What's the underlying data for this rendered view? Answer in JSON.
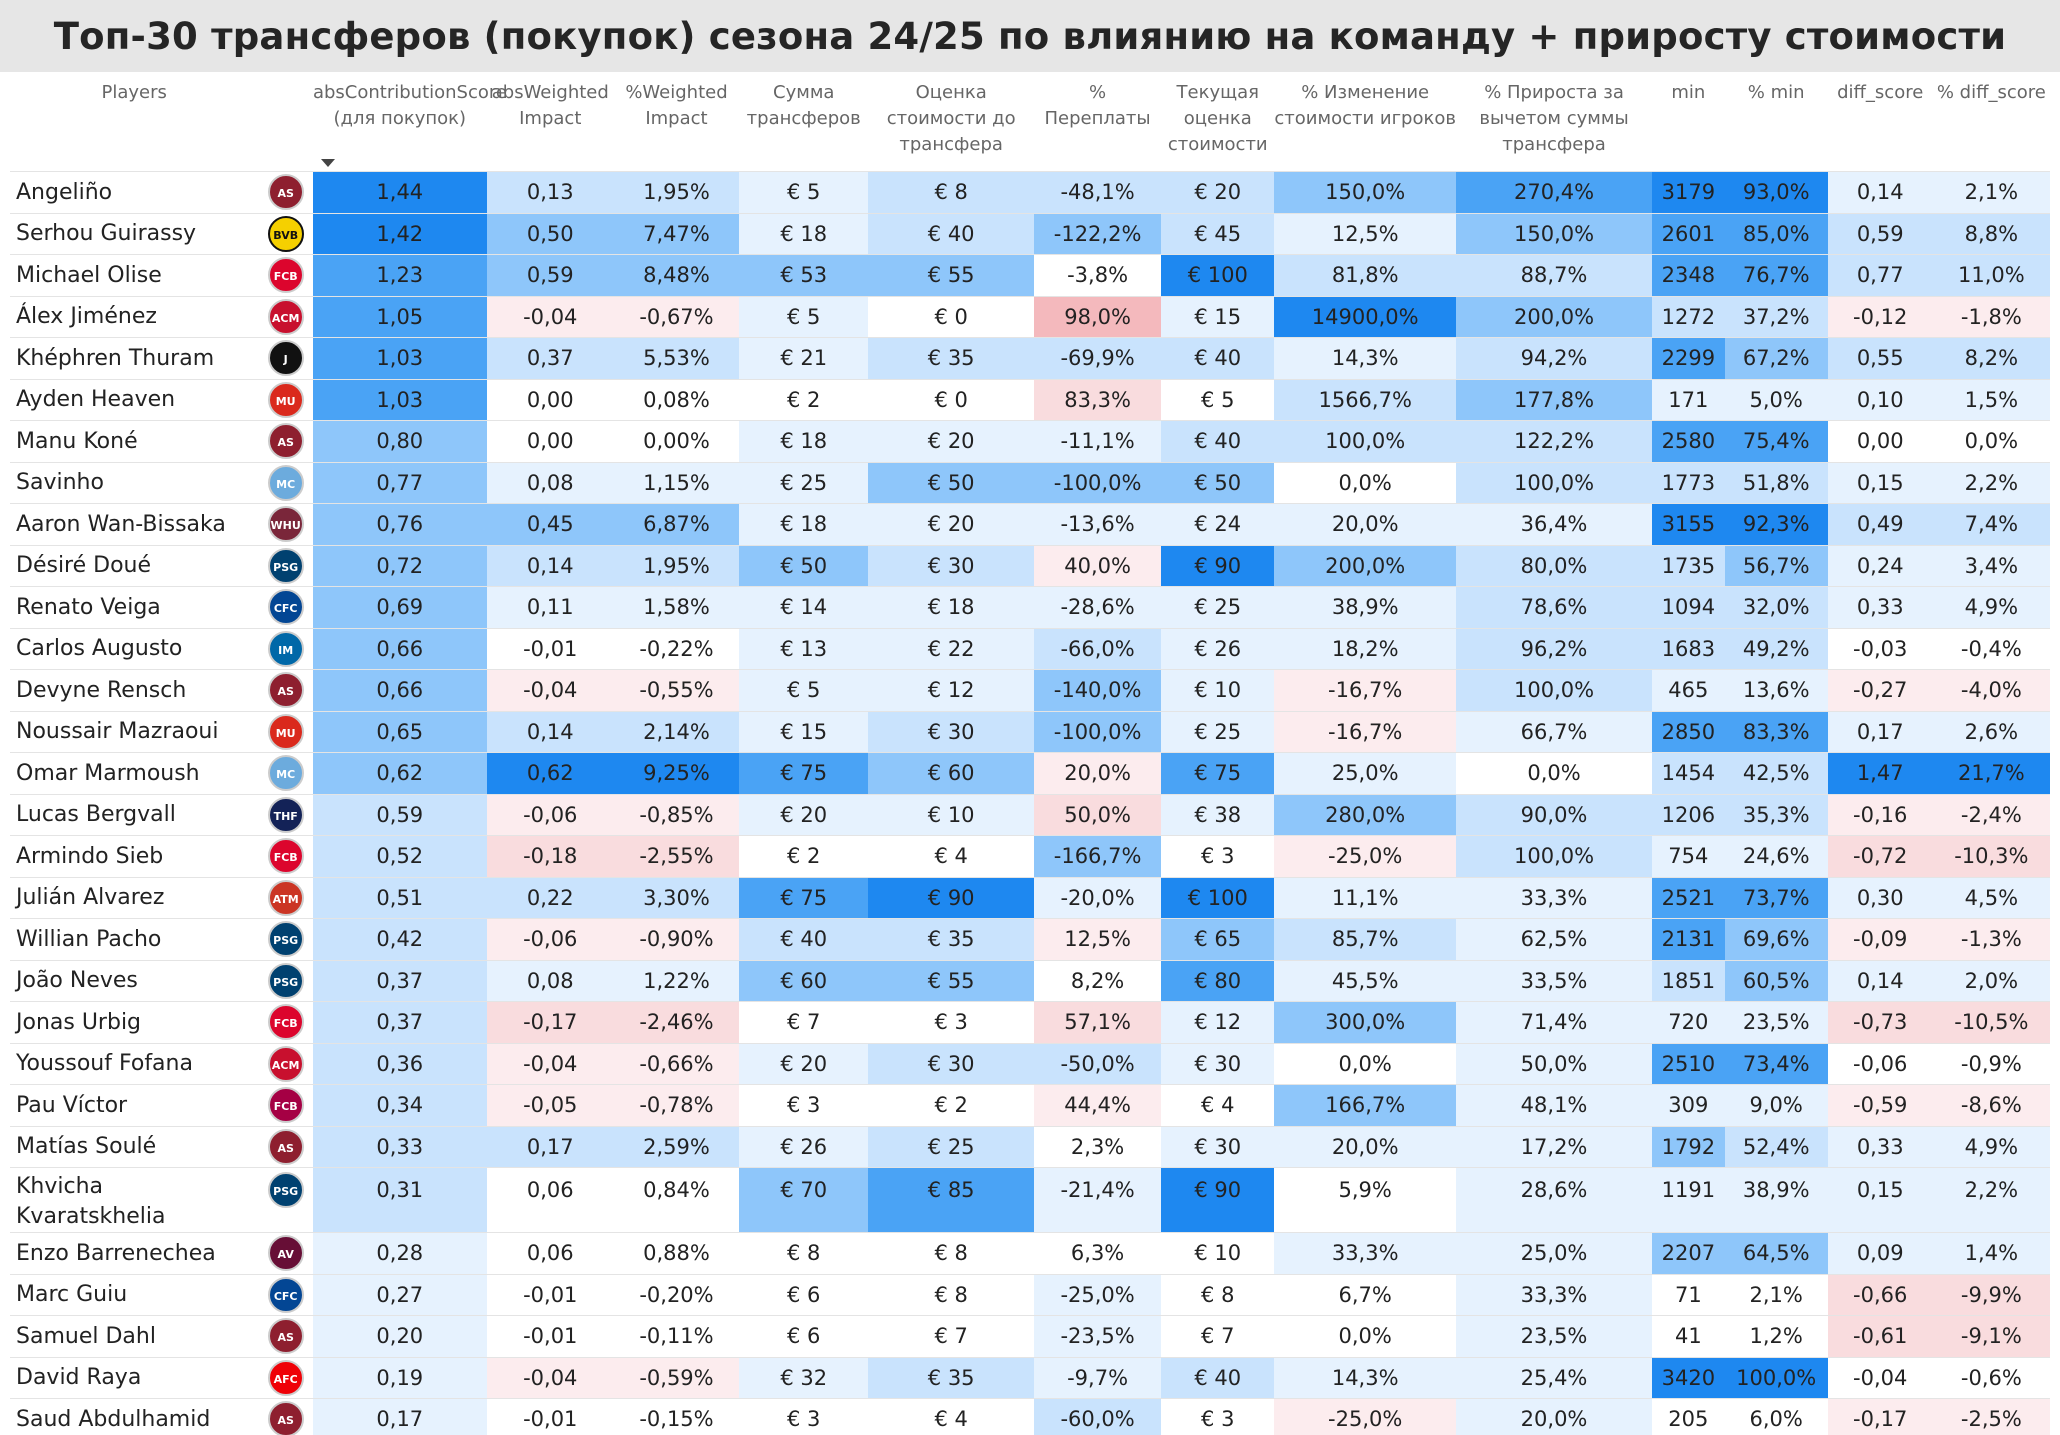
{
  "title": "Топ-30 трансферов (покупок) сезона 24/25 по влиянию на команду + приросту стоимости",
  "columns": [
    "Players",
    "",
    "absContributionScore (для покупок)",
    "absWeighted Impact",
    "%Weighted Impact",
    "Сумма трансферов",
    "Оценка стоимости до трансфера",
    "% Переплаты",
    "Текущая оценка стоимости",
    "% Изменение стоимости игроков",
    "% Прироста за вычетом суммы трансфера",
    "min",
    "% min",
    "diff_score",
    "% diff_score"
  ],
  "colors": {
    "blue_strong": "#1e88f0",
    "blue_mid": "#4aa3f5",
    "blue_light": "#8ec6fa",
    "blue_pale": "#c9e3fd",
    "blue_faint": "#e6f2fe",
    "red_light": "#f4b9bd",
    "red_pale": "#f9dcde",
    "red_faint": "#fcecee",
    "white": "#ffffff"
  },
  "rows": [
    {
      "player": "Angeliño",
      "club": "roma-icon",
      "club_color": "#8e1f2f",
      "cells": [
        "1,44",
        "0,13",
        "1,95%",
        "€ 5",
        "€ 8",
        "-48,1%",
        "€ 20",
        "150,0%",
        "270,4%",
        "3179",
        "93,0%",
        "0,14",
        "2,1%"
      ],
      "shade": [
        "blue_strong",
        "blue_pale",
        "blue_pale",
        "blue_faint",
        "blue_pale",
        "blue_pale",
        "blue_pale",
        "blue_light",
        "blue_mid",
        "blue_strong",
        "blue_strong",
        "blue_faint",
        "blue_faint"
      ]
    },
    {
      "player": "Serhou Guirassy",
      "club": "bvb-icon",
      "club_color": "#f5d000",
      "cells": [
        "1,42",
        "0,50",
        "7,47%",
        "€ 18",
        "€ 40",
        "-122,2%",
        "€ 45",
        "12,5%",
        "150,0%",
        "2601",
        "85,0%",
        "0,59",
        "8,8%"
      ],
      "shade": [
        "blue_strong",
        "blue_light",
        "blue_light",
        "blue_faint",
        "blue_pale",
        "blue_light",
        "blue_pale",
        "blue_faint",
        "blue_light",
        "blue_mid",
        "blue_mid",
        "blue_pale",
        "blue_pale"
      ]
    },
    {
      "player": "Michael Olise",
      "club": "bayern-icon",
      "club_color": "#dc052d",
      "cells": [
        "1,23",
        "0,59",
        "8,48%",
        "€ 53",
        "€ 55",
        "-3,8%",
        "€ 100",
        "81,8%",
        "88,7%",
        "2348",
        "76,7%",
        "0,77",
        "11,0%"
      ],
      "shade": [
        "blue_mid",
        "blue_light",
        "blue_light",
        "blue_light",
        "blue_light",
        "white",
        "blue_strong",
        "blue_pale",
        "blue_pale",
        "blue_mid",
        "blue_mid",
        "blue_pale",
        "blue_pale"
      ]
    },
    {
      "player": "Álex Jiménez",
      "club": "milan-icon",
      "club_color": "#c8102e",
      "cells": [
        "1,05",
        "-0,04",
        "-0,67%",
        "€ 5",
        "€ 0",
        "98,0%",
        "€ 15",
        "14900,0%",
        "200,0%",
        "1272",
        "37,2%",
        "-0,12",
        "-1,8%"
      ],
      "shade": [
        "blue_mid",
        "red_faint",
        "red_faint",
        "blue_faint",
        "white",
        "red_light",
        "blue_faint",
        "blue_strong",
        "blue_light",
        "blue_pale",
        "blue_pale",
        "red_faint",
        "red_faint"
      ]
    },
    {
      "player": "Khéphren Thuram",
      "club": "juventus-icon",
      "club_color": "#111111",
      "cells": [
        "1,03",
        "0,37",
        "5,53%",
        "€ 21",
        "€ 35",
        "-69,9%",
        "€ 40",
        "14,3%",
        "94,2%",
        "2299",
        "67,2%",
        "0,55",
        "8,2%"
      ],
      "shade": [
        "blue_mid",
        "blue_pale",
        "blue_pale",
        "blue_faint",
        "blue_pale",
        "blue_pale",
        "blue_pale",
        "blue_faint",
        "blue_pale",
        "blue_mid",
        "blue_light",
        "blue_pale",
        "blue_pale"
      ]
    },
    {
      "player": "Ayden Heaven",
      "club": "manutd-icon",
      "club_color": "#da291c",
      "cells": [
        "1,03",
        "0,00",
        "0,08%",
        "€ 2",
        "€ 0",
        "83,3%",
        "€ 5",
        "1566,7%",
        "177,8%",
        "171",
        "5,0%",
        "0,10",
        "1,5%"
      ],
      "shade": [
        "blue_mid",
        "white",
        "white",
        "white",
        "white",
        "red_pale",
        "white",
        "blue_pale",
        "blue_light",
        "blue_faint",
        "blue_faint",
        "blue_faint",
        "blue_faint"
      ]
    },
    {
      "player": "Manu Koné",
      "club": "roma-icon",
      "club_color": "#8e1f2f",
      "cells": [
        "0,80",
        "0,00",
        "0,00%",
        "€ 18",
        "€ 20",
        "-11,1%",
        "€ 40",
        "100,0%",
        "122,2%",
        "2580",
        "75,4%",
        "0,00",
        "0,0%"
      ],
      "shade": [
        "blue_light",
        "white",
        "white",
        "blue_faint",
        "blue_faint",
        "blue_faint",
        "blue_pale",
        "blue_pale",
        "blue_pale",
        "blue_mid",
        "blue_mid",
        "white",
        "white"
      ]
    },
    {
      "player": "Savinho",
      "club": "mancity-icon",
      "club_color": "#6cabdd",
      "cells": [
        "0,77",
        "0,08",
        "1,15%",
        "€ 25",
        "€ 50",
        "-100,0%",
        "€ 50",
        "0,0%",
        "100,0%",
        "1773",
        "51,8%",
        "0,15",
        "2,2%"
      ],
      "shade": [
        "blue_light",
        "blue_faint",
        "blue_faint",
        "blue_faint",
        "blue_light",
        "blue_light",
        "blue_light",
        "white",
        "blue_pale",
        "blue_pale",
        "blue_pale",
        "blue_faint",
        "blue_faint"
      ]
    },
    {
      "player": "Aaron Wan-Bissaka",
      "club": "westham-icon",
      "club_color": "#7a263a",
      "cells": [
        "0,76",
        "0,45",
        "6,87%",
        "€ 18",
        "€ 20",
        "-13,6%",
        "€ 24",
        "20,0%",
        "36,4%",
        "3155",
        "92,3%",
        "0,49",
        "7,4%"
      ],
      "shade": [
        "blue_light",
        "blue_light",
        "blue_light",
        "blue_faint",
        "blue_faint",
        "blue_faint",
        "blue_faint",
        "blue_faint",
        "blue_faint",
        "blue_strong",
        "blue_strong",
        "blue_pale",
        "blue_pale"
      ]
    },
    {
      "player": "Désiré Doué",
      "club": "psg-icon",
      "club_color": "#004170",
      "cells": [
        "0,72",
        "0,14",
        "1,95%",
        "€ 50",
        "€ 30",
        "40,0%",
        "€ 90",
        "200,0%",
        "80,0%",
        "1735",
        "56,7%",
        "0,24",
        "3,4%"
      ],
      "shade": [
        "blue_light",
        "blue_pale",
        "blue_pale",
        "blue_light",
        "blue_pale",
        "red_faint",
        "blue_strong",
        "blue_light",
        "blue_pale",
        "blue_pale",
        "blue_light",
        "blue_faint",
        "blue_faint"
      ]
    },
    {
      "player": "Renato Veiga",
      "club": "chelsea-icon",
      "club_color": "#034694",
      "cells": [
        "0,69",
        "0,11",
        "1,58%",
        "€ 14",
        "€ 18",
        "-28,6%",
        "€ 25",
        "38,9%",
        "78,6%",
        "1094",
        "32,0%",
        "0,33",
        "4,9%"
      ],
      "shade": [
        "blue_light",
        "blue_faint",
        "blue_faint",
        "blue_faint",
        "blue_faint",
        "blue_faint",
        "blue_faint",
        "blue_faint",
        "blue_pale",
        "blue_pale",
        "blue_pale",
        "blue_faint",
        "blue_faint"
      ]
    },
    {
      "player": "Carlos Augusto",
      "club": "inter-icon",
      "club_color": "#0068a8",
      "cells": [
        "0,66",
        "-0,01",
        "-0,22%",
        "€ 13",
        "€ 22",
        "-66,0%",
        "€ 26",
        "18,2%",
        "96,2%",
        "1683",
        "49,2%",
        "-0,03",
        "-0,4%"
      ],
      "shade": [
        "blue_light",
        "white",
        "white",
        "blue_faint",
        "blue_faint",
        "blue_pale",
        "blue_faint",
        "blue_faint",
        "blue_pale",
        "blue_pale",
        "blue_pale",
        "white",
        "white"
      ]
    },
    {
      "player": "Devyne Rensch",
      "club": "roma-icon",
      "club_color": "#8e1f2f",
      "cells": [
        "0,66",
        "-0,04",
        "-0,55%",
        "€ 5",
        "€ 12",
        "-140,0%",
        "€ 10",
        "-16,7%",
        "100,0%",
        "465",
        "13,6%",
        "-0,27",
        "-4,0%"
      ],
      "shade": [
        "blue_light",
        "red_faint",
        "red_faint",
        "blue_faint",
        "blue_faint",
        "blue_light",
        "blue_faint",
        "red_faint",
        "blue_pale",
        "blue_faint",
        "blue_faint",
        "red_faint",
        "red_faint"
      ]
    },
    {
      "player": "Noussair Mazraoui",
      "club": "manutd-icon",
      "club_color": "#da291c",
      "cells": [
        "0,65",
        "0,14",
        "2,14%",
        "€ 15",
        "€ 30",
        "-100,0%",
        "€ 25",
        "-16,7%",
        "66,7%",
        "2850",
        "83,3%",
        "0,17",
        "2,6%"
      ],
      "shade": [
        "blue_light",
        "blue_pale",
        "blue_pale",
        "blue_faint",
        "blue_pale",
        "blue_light",
        "blue_faint",
        "red_faint",
        "blue_faint",
        "blue_mid",
        "blue_mid",
        "blue_faint",
        "blue_faint"
      ]
    },
    {
      "player": "Omar Marmoush",
      "club": "mancity-icon",
      "club_color": "#6cabdd",
      "cells": [
        "0,62",
        "0,62",
        "9,25%",
        "€ 75",
        "€ 60",
        "20,0%",
        "€ 75",
        "25,0%",
        "0,0%",
        "1454",
        "42,5%",
        "1,47",
        "21,7%"
      ],
      "shade": [
        "blue_light",
        "blue_strong",
        "blue_strong",
        "blue_mid",
        "blue_light",
        "red_faint",
        "blue_mid",
        "blue_faint",
        "white",
        "blue_pale",
        "blue_pale",
        "blue_strong",
        "blue_strong"
      ]
    },
    {
      "player": "Lucas Bergvall",
      "club": "tottenham-icon",
      "club_color": "#132257",
      "cells": [
        "0,59",
        "-0,06",
        "-0,85%",
        "€ 20",
        "€ 10",
        "50,0%",
        "€ 38",
        "280,0%",
        "90,0%",
        "1206",
        "35,3%",
        "-0,16",
        "-2,4%"
      ],
      "shade": [
        "blue_pale",
        "red_faint",
        "red_faint",
        "blue_faint",
        "blue_faint",
        "red_pale",
        "blue_faint",
        "blue_light",
        "blue_pale",
        "blue_pale",
        "blue_pale",
        "red_faint",
        "red_faint"
      ]
    },
    {
      "player": "Armindo Sieb",
      "club": "bayern-icon",
      "club_color": "#dc052d",
      "cells": [
        "0,52",
        "-0,18",
        "-2,55%",
        "€ 2",
        "€ 4",
        "-166,7%",
        "€ 3",
        "-25,0%",
        "100,0%",
        "754",
        "24,6%",
        "-0,72",
        "-10,3%"
      ],
      "shade": [
        "blue_pale",
        "red_pale",
        "red_pale",
        "white",
        "white",
        "blue_light",
        "white",
        "red_faint",
        "blue_pale",
        "blue_faint",
        "blue_faint",
        "red_pale",
        "red_pale"
      ]
    },
    {
      "player": "Julián Alvarez",
      "club": "atletico-icon",
      "club_color": "#cb3524",
      "cells": [
        "0,51",
        "0,22",
        "3,30%",
        "€ 75",
        "€ 90",
        "-20,0%",
        "€ 100",
        "11,1%",
        "33,3%",
        "2521",
        "73,7%",
        "0,30",
        "4,5%"
      ],
      "shade": [
        "blue_pale",
        "blue_pale",
        "blue_pale",
        "blue_mid",
        "blue_strong",
        "blue_faint",
        "blue_strong",
        "blue_faint",
        "blue_faint",
        "blue_mid",
        "blue_mid",
        "blue_faint",
        "blue_faint"
      ]
    },
    {
      "player": "Willian Pacho",
      "club": "psg-icon",
      "club_color": "#004170",
      "cells": [
        "0,42",
        "-0,06",
        "-0,90%",
        "€ 40",
        "€ 35",
        "12,5%",
        "€ 65",
        "85,7%",
        "62,5%",
        "2131",
        "69,6%",
        "-0,09",
        "-1,3%"
      ],
      "shade": [
        "blue_pale",
        "red_faint",
        "red_faint",
        "blue_pale",
        "blue_pale",
        "red_faint",
        "blue_light",
        "blue_pale",
        "blue_faint",
        "blue_mid",
        "blue_light",
        "red_faint",
        "red_faint"
      ]
    },
    {
      "player": "João Neves",
      "club": "psg-icon",
      "club_color": "#004170",
      "cells": [
        "0,37",
        "0,08",
        "1,22%",
        "€ 60",
        "€ 55",
        "8,2%",
        "€ 80",
        "45,5%",
        "33,5%",
        "1851",
        "60,5%",
        "0,14",
        "2,0%"
      ],
      "shade": [
        "blue_pale",
        "blue_faint",
        "blue_faint",
        "blue_light",
        "blue_light",
        "white",
        "blue_mid",
        "blue_faint",
        "blue_faint",
        "blue_pale",
        "blue_light",
        "blue_faint",
        "blue_faint"
      ]
    },
    {
      "player": "Jonas Urbig",
      "club": "bayern-icon",
      "club_color": "#dc052d",
      "cells": [
        "0,37",
        "-0,17",
        "-2,46%",
        "€ 7",
        "€ 3",
        "57,1%",
        "€ 12",
        "300,0%",
        "71,4%",
        "720",
        "23,5%",
        "-0,73",
        "-10,5%"
      ],
      "shade": [
        "blue_pale",
        "red_pale",
        "red_pale",
        "white",
        "white",
        "red_pale",
        "blue_faint",
        "blue_light",
        "blue_faint",
        "blue_faint",
        "blue_faint",
        "red_pale",
        "red_pale"
      ]
    },
    {
      "player": "Youssouf Fofana",
      "club": "milan-icon",
      "club_color": "#c8102e",
      "cells": [
        "0,36",
        "-0,04",
        "-0,66%",
        "€ 20",
        "€ 30",
        "-50,0%",
        "€ 30",
        "0,0%",
        "50,0%",
        "2510",
        "73,4%",
        "-0,06",
        "-0,9%"
      ],
      "shade": [
        "blue_pale",
        "red_faint",
        "red_faint",
        "blue_faint",
        "blue_pale",
        "blue_pale",
        "blue_faint",
        "white",
        "blue_faint",
        "blue_mid",
        "blue_mid",
        "white",
        "white"
      ]
    },
    {
      "player": "Pau Víctor",
      "club": "barcelona-icon",
      "club_color": "#a50044",
      "cells": [
        "0,34",
        "-0,05",
        "-0,78%",
        "€ 3",
        "€ 2",
        "44,4%",
        "€ 4",
        "166,7%",
        "48,1%",
        "309",
        "9,0%",
        "-0,59",
        "-8,6%"
      ],
      "shade": [
        "blue_pale",
        "red_faint",
        "red_faint",
        "white",
        "white",
        "red_faint",
        "white",
        "blue_light",
        "blue_faint",
        "blue_faint",
        "blue_faint",
        "red_faint",
        "red_faint"
      ]
    },
    {
      "player": "Matías Soulé",
      "club": "roma-icon",
      "club_color": "#8e1f2f",
      "cells": [
        "0,33",
        "0,17",
        "2,59%",
        "€ 26",
        "€ 25",
        "2,3%",
        "€ 30",
        "20,0%",
        "17,2%",
        "1792",
        "52,4%",
        "0,33",
        "4,9%"
      ],
      "shade": [
        "blue_pale",
        "blue_pale",
        "blue_pale",
        "blue_faint",
        "blue_pale",
        "white",
        "blue_faint",
        "blue_faint",
        "blue_faint",
        "blue_light",
        "blue_pale",
        "blue_faint",
        "blue_faint"
      ]
    },
    {
      "player": "Khvicha Kvaratskhelia",
      "club": "psg-icon",
      "club_color": "#004170",
      "cells": [
        "0,31",
        "0,06",
        "0,84%",
        "€ 70",
        "€ 85",
        "-21,4%",
        "€ 90",
        "5,9%",
        "28,6%",
        "1191",
        "38,9%",
        "0,15",
        "2,2%"
      ],
      "shade": [
        "blue_pale",
        "white",
        "white",
        "blue_light",
        "blue_mid",
        "blue_faint",
        "blue_strong",
        "white",
        "blue_faint",
        "blue_faint",
        "blue_faint",
        "blue_faint",
        "blue_faint"
      ]
    },
    {
      "player": "Enzo Barrenechea",
      "club": "astonvilla-icon",
      "club_color": "#670e36",
      "cells": [
        "0,28",
        "0,06",
        "0,88%",
        "€ 8",
        "€ 8",
        "6,3%",
        "€ 10",
        "33,3%",
        "25,0%",
        "2207",
        "64,5%",
        "0,09",
        "1,4%"
      ],
      "shade": [
        "blue_faint",
        "white",
        "white",
        "white",
        "white",
        "white",
        "white",
        "blue_faint",
        "blue_faint",
        "blue_light",
        "blue_light",
        "blue_faint",
        "blue_faint"
      ]
    },
    {
      "player": "Marc Guiu",
      "club": "chelsea-icon",
      "club_color": "#034694",
      "cells": [
        "0,27",
        "-0,01",
        "-0,20%",
        "€ 6",
        "€ 8",
        "-25,0%",
        "€ 8",
        "6,7%",
        "33,3%",
        "71",
        "2,1%",
        "-0,66",
        "-9,9%"
      ],
      "shade": [
        "blue_faint",
        "white",
        "white",
        "white",
        "white",
        "blue_faint",
        "white",
        "white",
        "blue_faint",
        "white",
        "white",
        "red_pale",
        "red_pale"
      ]
    },
    {
      "player": "Samuel Dahl",
      "club": "roma-icon",
      "club_color": "#8e1f2f",
      "cells": [
        "0,20",
        "-0,01",
        "-0,11%",
        "€ 6",
        "€ 7",
        "-23,5%",
        "€ 7",
        "0,0%",
        "23,5%",
        "41",
        "1,2%",
        "-0,61",
        "-9,1%"
      ],
      "shade": [
        "blue_faint",
        "white",
        "white",
        "white",
        "white",
        "blue_faint",
        "white",
        "white",
        "blue_faint",
        "white",
        "white",
        "red_pale",
        "red_pale"
      ]
    },
    {
      "player": "David Raya",
      "club": "arsenal-icon",
      "club_color": "#ef0107",
      "cells": [
        "0,19",
        "-0,04",
        "-0,59%",
        "€ 32",
        "€ 35",
        "-9,7%",
        "€ 40",
        "14,3%",
        "25,4%",
        "3420",
        "100,0%",
        "-0,04",
        "-0,6%"
      ],
      "shade": [
        "blue_faint",
        "red_faint",
        "red_faint",
        "blue_faint",
        "blue_pale",
        "blue_faint",
        "blue_pale",
        "blue_faint",
        "blue_faint",
        "blue_strong",
        "blue_strong",
        "white",
        "white"
      ]
    },
    {
      "player": "Saud Abdulhamid",
      "club": "roma-icon",
      "club_color": "#8e1f2f",
      "cells": [
        "0,17",
        "-0,01",
        "-0,15%",
        "€ 3",
        "€ 4",
        "-60,0%",
        "€ 3",
        "-25,0%",
        "20,0%",
        "205",
        "6,0%",
        "-0,17",
        "-2,5%"
      ],
      "shade": [
        "blue_faint",
        "white",
        "white",
        "white",
        "white",
        "blue_pale",
        "white",
        "red_faint",
        "blue_faint",
        "white",
        "white",
        "red_faint",
        "red_faint"
      ]
    }
  ]
}
